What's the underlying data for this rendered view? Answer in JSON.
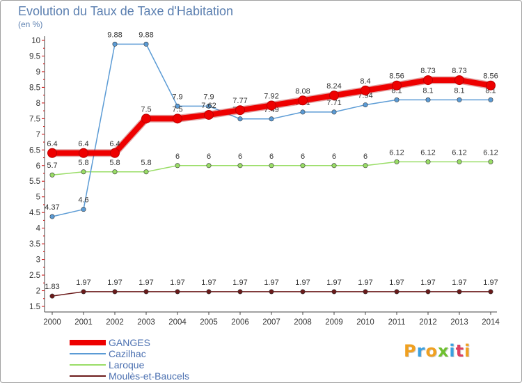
{
  "title": "Evolution du Taux de Taxe d'Habitation",
  "subtitle": "(en %)",
  "logo": {
    "text": "Proxiti",
    "colors": [
      "#f0a020",
      "#3aa0e0",
      "#f0a020",
      "#6fc030",
      "#3aa0e0",
      "#e04060",
      "#f0a020"
    ]
  },
  "chart_data": {
    "type": "line",
    "title": "Evolution du Taux de Taxe d'Habitation",
    "subtitle": "(en %)",
    "ylim": [
      1.5,
      10
    ],
    "y_ticks": [
      "1.5",
      "2",
      "2.5",
      "3",
      "3.5",
      "4",
      "4.5",
      "5",
      "5.5",
      "6",
      "6.5",
      "7",
      "7.5",
      "8",
      "8.5",
      "9",
      "9.5",
      "10"
    ],
    "categories": [
      "2000",
      "2001",
      "2002",
      "2003",
      "2004",
      "2005",
      "2006",
      "2007",
      "2008",
      "2009",
      "2010",
      "2011",
      "2012",
      "2013",
      "2014"
    ],
    "grid": false,
    "legend_position": "bottom-left",
    "series": [
      {
        "name": "Moulès-et-Baucels",
        "color": "#6b1a1a",
        "values": [
          1.83,
          1.97,
          1.97,
          1.97,
          1.97,
          1.97,
          1.97,
          1.97,
          1.97,
          1.97,
          1.97,
          1.97,
          1.97,
          1.97,
          1.97
        ],
        "labels": [
          "1.83",
          "1.97",
          "1.97",
          "1.97",
          "1.97",
          "1.97",
          "1.97",
          "1.97",
          "1.97",
          "1.97",
          "1.97",
          "1.97",
          "1.97",
          "1.97",
          "1.97"
        ]
      },
      {
        "name": "Laroque",
        "color": "#99dd66",
        "values": [
          5.7,
          5.8,
          5.8,
          5.8,
          6,
          6,
          6,
          6,
          6,
          6,
          6,
          6.12,
          6.12,
          6.12,
          6.12
        ],
        "labels": [
          "5.7",
          "5.8",
          "5.8",
          "5.8",
          "6",
          "6",
          "6",
          "6",
          "6",
          "6",
          "6",
          "6.12",
          "6.12",
          "6.12",
          "6.12"
        ]
      },
      {
        "name": "Cazilhac",
        "color": "#5b9bd5",
        "values": [
          4.37,
          4.6,
          9.88,
          9.88,
          7.9,
          7.9,
          7.49,
          7.49,
          7.71,
          7.71,
          7.94,
          8.1,
          8.1,
          8.1,
          8.1
        ],
        "labels": [
          "4.37",
          "4.6",
          "9.88",
          "9.88",
          "7.9",
          "7.9",
          "7.49",
          "7.49",
          "7.71",
          "7.71",
          "7.94",
          "8.1",
          "8.1",
          "8.1",
          "8.1"
        ]
      },
      {
        "name": "GANGES",
        "color": "#ee0000",
        "values": [
          6.4,
          6.4,
          6.4,
          7.5,
          7.5,
          7.62,
          7.77,
          7.92,
          8.08,
          8.24,
          8.4,
          8.56,
          8.73,
          8.73,
          8.56
        ],
        "labels": [
          "6.4",
          "6.4",
          "6.4",
          "7.5",
          "7.5",
          "7.62",
          "7.77",
          "7.92",
          "8.08",
          "8.24",
          "8.4",
          "8.56",
          "8.73",
          "8.73",
          "8.56"
        ]
      }
    ],
    "legend": [
      "GANGES",
      "Cazilhac",
      "Laroque",
      "Moulès-et-Baucels"
    ]
  }
}
